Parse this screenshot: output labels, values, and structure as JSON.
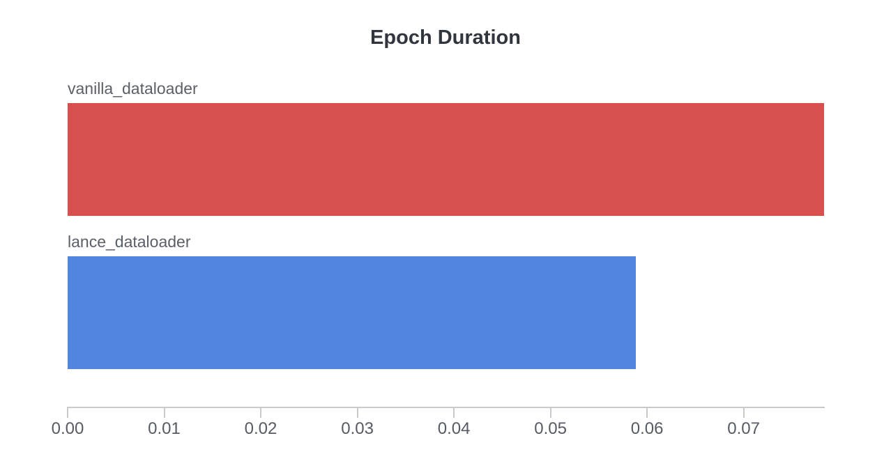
{
  "chart_data": {
    "type": "bar",
    "orientation": "horizontal",
    "title": "Epoch Duration",
    "categories": [
      "vanilla_dataloader",
      "lance_dataloader"
    ],
    "values": [
      0.0783,
      0.0588
    ],
    "series_colors": [
      "#d8504d",
      "#5285de"
    ],
    "xlabel": "",
    "ylabel": "",
    "xlim": [
      0,
      0.0784
    ],
    "x_tick_values": [
      0.0,
      0.01,
      0.02,
      0.03,
      0.04,
      0.05,
      0.06,
      0.07
    ],
    "x_tick_labels": [
      "0.00",
      "0.01",
      "0.02",
      "0.03",
      "0.04",
      "0.05",
      "0.06",
      "0.07"
    ],
    "grid": false,
    "legend": "none",
    "category_label_position": "above-bar-left"
  },
  "colors": {
    "background": "#ffffff",
    "title_text": "#31353d",
    "bar_label_text": "#5b5f68",
    "tick_label_text": "#565a64",
    "axis_line": "#c9c9cd"
  }
}
